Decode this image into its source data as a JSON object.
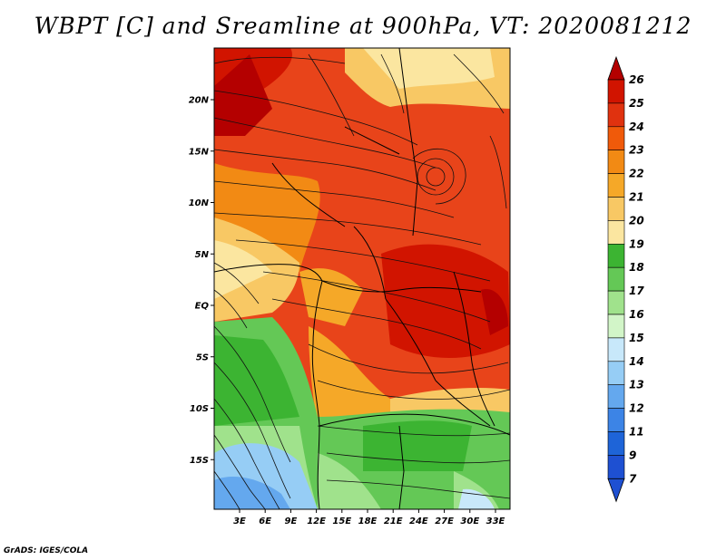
{
  "title": "WBPT [C] and Sreamline at 900hPa, VT: 2020081212",
  "credit": "GrADS: IGES/COLA",
  "lat_labels": [
    "20N",
    "15N",
    "10N",
    "5N",
    "EQ",
    "5S",
    "10S",
    "15S"
  ],
  "lat_values": [
    20,
    15,
    10,
    5,
    0,
    -5,
    -10,
    -15
  ],
  "lon_labels": [
    "3E",
    "6E",
    "9E",
    "12E",
    "15E",
    "18E",
    "21E",
    "24E",
    "27E",
    "30E",
    "33E"
  ],
  "lon_values": [
    3,
    6,
    9,
    12,
    15,
    18,
    21,
    24,
    27,
    30,
    33
  ],
  "colorbar": {
    "labels": [
      "26",
      "25",
      "24",
      "23",
      "22",
      "21",
      "20",
      "19",
      "18",
      "17",
      "16",
      "15",
      "14",
      "13",
      "12",
      "11",
      "9",
      "7"
    ],
    "colors": [
      "#b40000",
      "#d11400",
      "#e0320f",
      "#f05a0a",
      "#f28a14",
      "#f5a828",
      "#f8c864",
      "#fbe6a0",
      "#3cb432",
      "#64c856",
      "#a0e28c",
      "#d2f5c8",
      "#c8e8fa",
      "#96cdf5",
      "#64a8ee",
      "#3c84e6",
      "#1e64d8",
      "#1e50d2"
    ]
  }
}
